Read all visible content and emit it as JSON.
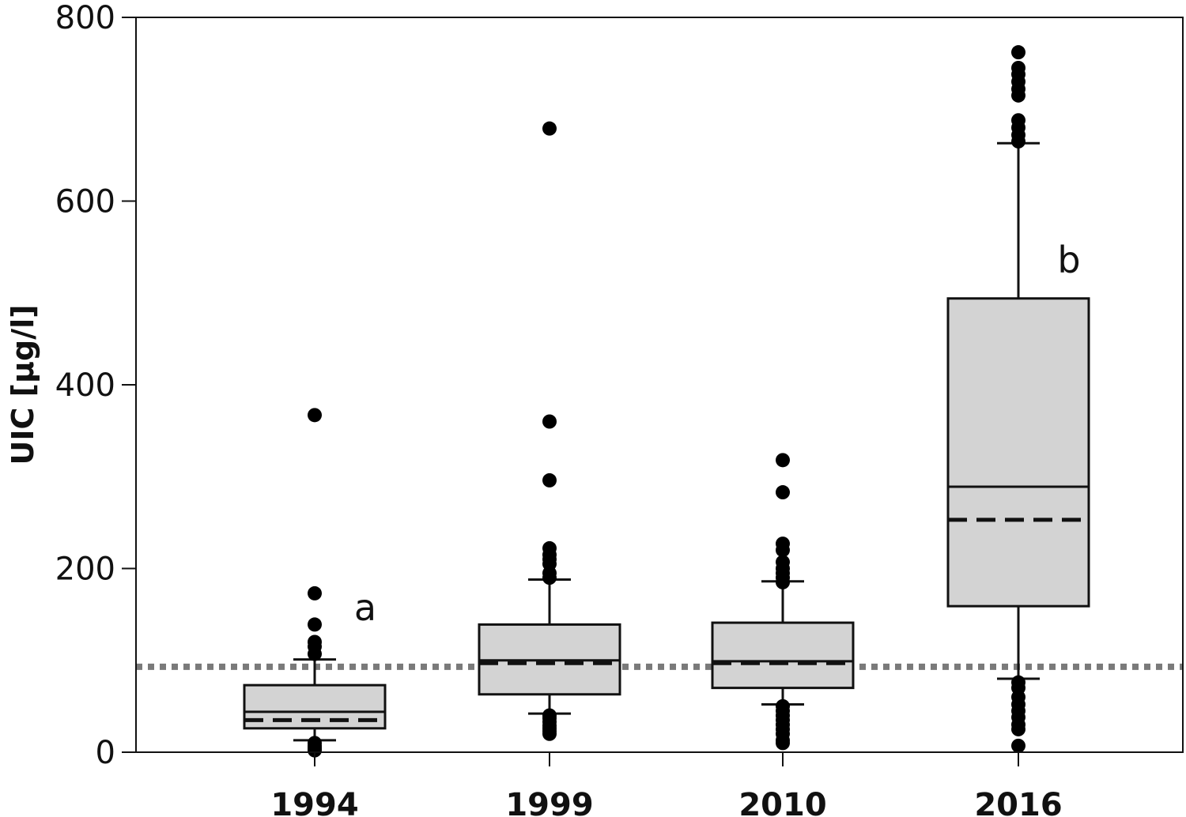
{
  "chart_data": {
    "type": "box",
    "ylabel": "UIC [µg/l]",
    "xlabel": "",
    "ylim": [
      0,
      800
    ],
    "yticks": [
      0,
      200,
      400,
      600,
      800
    ],
    "categories": [
      "1994",
      "1999",
      "2010",
      "2016"
    ],
    "reference_line": {
      "value": 93,
      "style": "dotted",
      "color": "#7a7a7a"
    },
    "boxes": [
      {
        "category": "1994",
        "whisker_low": 13,
        "q1": 26,
        "median": 44,
        "mean": 35,
        "q3": 73,
        "whisker_high": 101,
        "outliers": [
          367,
          173,
          139,
          120,
          115,
          107,
          10,
          7,
          5,
          3,
          2
        ],
        "annotation": "a"
      },
      {
        "category": "1999",
        "whisker_low": 42,
        "q1": 63,
        "median": 100,
        "mean": 97,
        "q3": 139,
        "whisker_high": 188,
        "outliers": [
          679,
          360,
          296,
          222,
          215,
          210,
          205,
          195,
          190,
          40,
          37,
          33,
          29,
          26,
          23,
          20
        ],
        "annotation": ""
      },
      {
        "category": "2010",
        "whisker_low": 52,
        "q1": 70,
        "median": 99,
        "mean": 97,
        "q3": 141,
        "whisker_high": 186,
        "outliers": [
          318,
          283,
          227,
          220,
          207,
          200,
          195,
          190,
          185,
          50,
          45,
          40,
          35,
          30,
          25,
          20,
          13,
          10
        ],
        "annotation": ""
      },
      {
        "category": "2016",
        "whisker_low": 80,
        "q1": 159,
        "median": 289,
        "mean": 253,
        "q3": 494,
        "whisker_high": 663,
        "outliers": [
          762,
          745,
          738,
          730,
          722,
          715,
          688,
          680,
          672,
          665,
          76,
          70,
          60,
          52,
          45,
          38,
          30,
          25,
          7
        ],
        "annotation": "b"
      }
    ],
    "colors": {
      "box_fill": "#d3d3d3",
      "stroke": "#111111",
      "outlier": "#000000"
    }
  }
}
